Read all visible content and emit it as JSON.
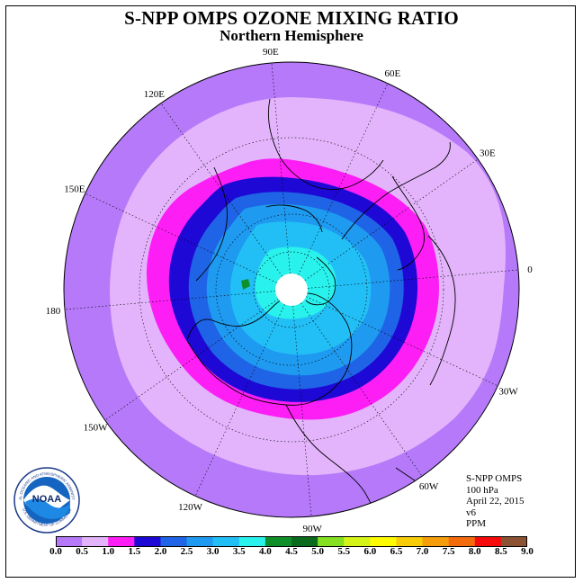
{
  "title": "S-NPP OMPS OZONE MIXING RATIO",
  "subtitle": "Northern Hemisphere",
  "longitude_labels": [
    {
      "text": "90E",
      "lon": 90
    },
    {
      "text": "60E",
      "lon": 60
    },
    {
      "text": "30E",
      "lon": 30
    },
    {
      "text": "0",
      "lon": 0
    },
    {
      "text": "30W",
      "lon": -30
    },
    {
      "text": "60W",
      "lon": -60
    },
    {
      "text": "90W",
      "lon": -90
    },
    {
      "text": "120W",
      "lon": -120
    },
    {
      "text": "150W",
      "lon": -150
    },
    {
      "text": "180",
      "lon": 180
    },
    {
      "text": "150E",
      "lon": 150
    },
    {
      "text": "120E",
      "lon": 120
    }
  ],
  "info": {
    "instrument": "S-NPP OMPS",
    "level": "100 hPa",
    "date": "April 22, 2015",
    "version": "v6",
    "units": "PPM"
  },
  "logo": {
    "text": "NOAA",
    "ring_text_top": "NATIONAL OCEANIC AND ATMOSPHERIC ADMINISTRATION",
    "ring_text_bottom": "U.S. DEPARTMENT OF COMMERCE"
  },
  "colorbar": {
    "ticks": [
      "0.0",
      "0.5",
      "1.0",
      "1.5",
      "2.0",
      "2.5",
      "3.0",
      "3.5",
      "4.0",
      "4.5",
      "5.0",
      "5.5",
      "6.0",
      "6.5",
      "7.0",
      "7.5",
      "8.0",
      "8.5",
      "9.0"
    ],
    "colors": [
      "#b579f9",
      "#e3b4fb",
      "#fc1ef5",
      "#1e08d5",
      "#1f63e6",
      "#1e9af0",
      "#22bff6",
      "#29f1ec",
      "#0f8f2a",
      "#0b6b1d",
      "#85e021",
      "#d4f418",
      "#fffb00",
      "#f7cd0a",
      "#f69d0b",
      "#f46b0d",
      "#f50b0b",
      "#8b5234"
    ]
  }
}
